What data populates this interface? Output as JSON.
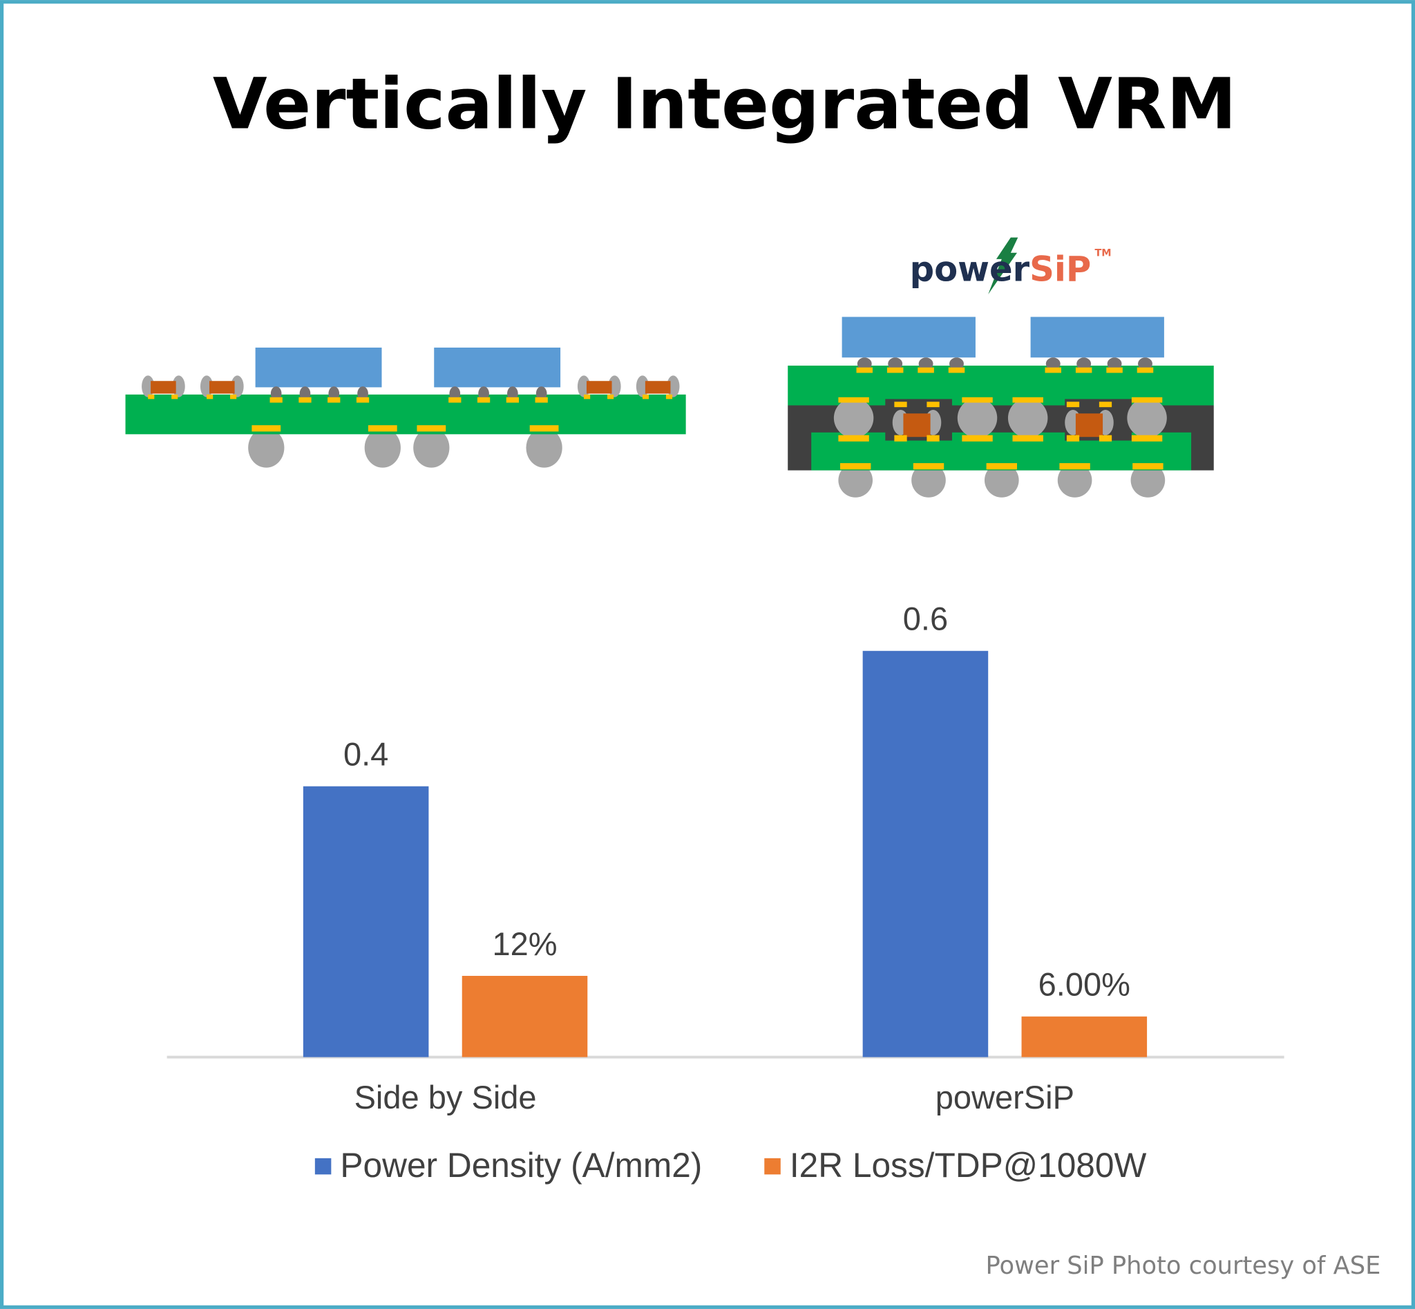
{
  "title": "Vertically Integrated VRM",
  "logo": {
    "part1": "power",
    "part2": "SiP",
    "tm": "TM"
  },
  "footnote": "Power SiP Photo courtesy of ASE",
  "colors": {
    "border": "#4bacc6",
    "board": "#00b050",
    "chip": "#5b9bd5",
    "pad": "#ffc000",
    "ball": "#a6a6a6",
    "bump": "#767171",
    "cap": "#c55a11",
    "mold": "#404040",
    "logo_dark": "#1f3050",
    "logo_accent": "#e8694a"
  },
  "chart_data": {
    "type": "bar",
    "categories": [
      "Side by Side",
      "powerSiP"
    ],
    "series": [
      {
        "name": "Power Density (A/mm2)",
        "color": "#4472c4",
        "values": [
          0.4,
          0.6
        ],
        "labels": [
          "0.4",
          "0.6"
        ]
      },
      {
        "name": "I2R Loss/TDP@1080W",
        "color": "#ed7d31",
        "values": [
          0.12,
          0.06
        ],
        "labels": [
          "12%",
          "6.00%"
        ]
      }
    ],
    "ylim": [
      0,
      0.6
    ],
    "grid": false,
    "legend": "bottom"
  }
}
